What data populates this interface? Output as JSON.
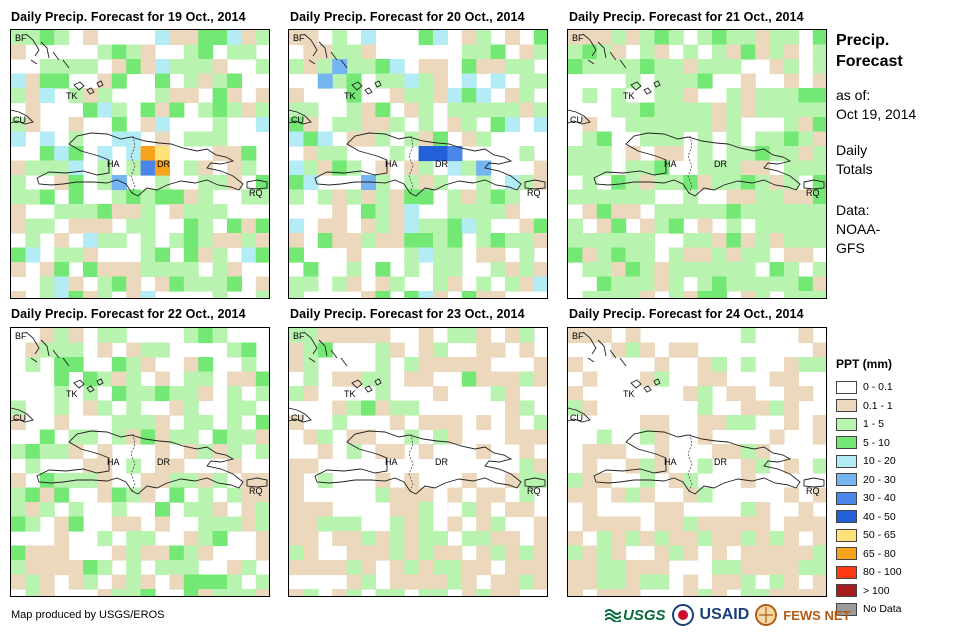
{
  "panels": [
    {
      "title": "Daily Precip. Forecast for 19 Oct., 2014",
      "seed": 19,
      "pattern": "wet"
    },
    {
      "title": "Daily Precip. Forecast for 20 Oct., 2014",
      "seed": 20,
      "pattern": "wet2"
    },
    {
      "title": "Daily Precip. Forecast for 21 Oct., 2014",
      "seed": 21,
      "pattern": "green"
    },
    {
      "title": "Daily Precip. Forecast for 22 Oct., 2014",
      "seed": 22,
      "pattern": "mixed"
    },
    {
      "title": "Daily Precip. Forecast for 23 Oct., 2014",
      "seed": 23,
      "pattern": "drier"
    },
    {
      "title": "Daily Precip. Forecast for 24 Oct., 2014",
      "seed": 24,
      "pattern": "dry"
    }
  ],
  "map_labels": {
    "bf": "BF",
    "cu": "CU",
    "tk": "TK",
    "ha": "HA",
    "dr": "DR",
    "rq": "RQ"
  },
  "sidebar": {
    "title_line1": "Precip.",
    "title_line2": "Forecast",
    "asof_label": "as of:",
    "asof_date": "Oct 19, 2014",
    "totals_line1": "Daily",
    "totals_line2": "Totals",
    "data_label": "Data:",
    "data_line1": "NOAA-",
    "data_line2": "GFS"
  },
  "legend": {
    "title": "PPT (mm)",
    "items": [
      {
        "label": "0 - 0.1",
        "color": "#ffffff"
      },
      {
        "label": "0.1 - 1",
        "color": "#ecd9bd"
      },
      {
        "label": "1 - 5",
        "color": "#b9f3b0"
      },
      {
        "label": "5 - 10",
        "color": "#74e874"
      },
      {
        "label": "10 - 20",
        "color": "#b3ecf4"
      },
      {
        "label": "20 - 30",
        "color": "#74b4f0"
      },
      {
        "label": "30 - 40",
        "color": "#4a86e8"
      },
      {
        "label": "40 - 50",
        "color": "#2360d8"
      },
      {
        "label": "50 - 65",
        "color": "#ffe27a"
      },
      {
        "label": "65 - 80",
        "color": "#f6a21c"
      },
      {
        "label": "80 - 100",
        "color": "#ff3b12"
      },
      {
        "label": "> 100",
        "color": "#a61b1b"
      },
      {
        "label": "No Data",
        "color": "#9a9a9a"
      }
    ]
  },
  "credit": "Map produced by USGS/EROS",
  "logos": {
    "usgs": "USGS",
    "usaid": "USAID",
    "fewsnet": "FEWS NET"
  }
}
